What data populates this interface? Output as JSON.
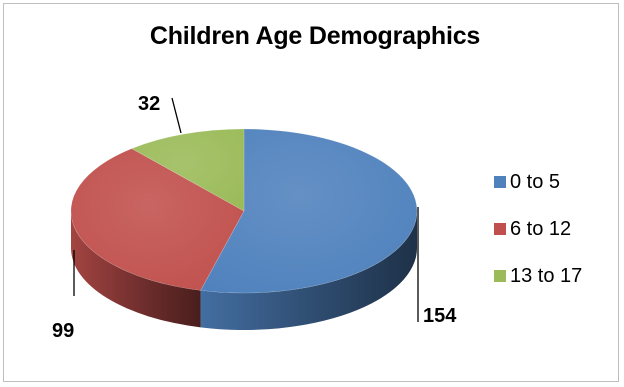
{
  "chart_data": {
    "type": "pie",
    "title": "Children Age Demographics",
    "categories": [
      "0 to 5",
      "6 to 12",
      "13 to 17"
    ],
    "values": [
      154,
      99,
      32
    ],
    "colors": [
      "#4f81bd",
      "#c0504d",
      "#9bbb59"
    ],
    "legend_position": "right",
    "style": "3d"
  }
}
